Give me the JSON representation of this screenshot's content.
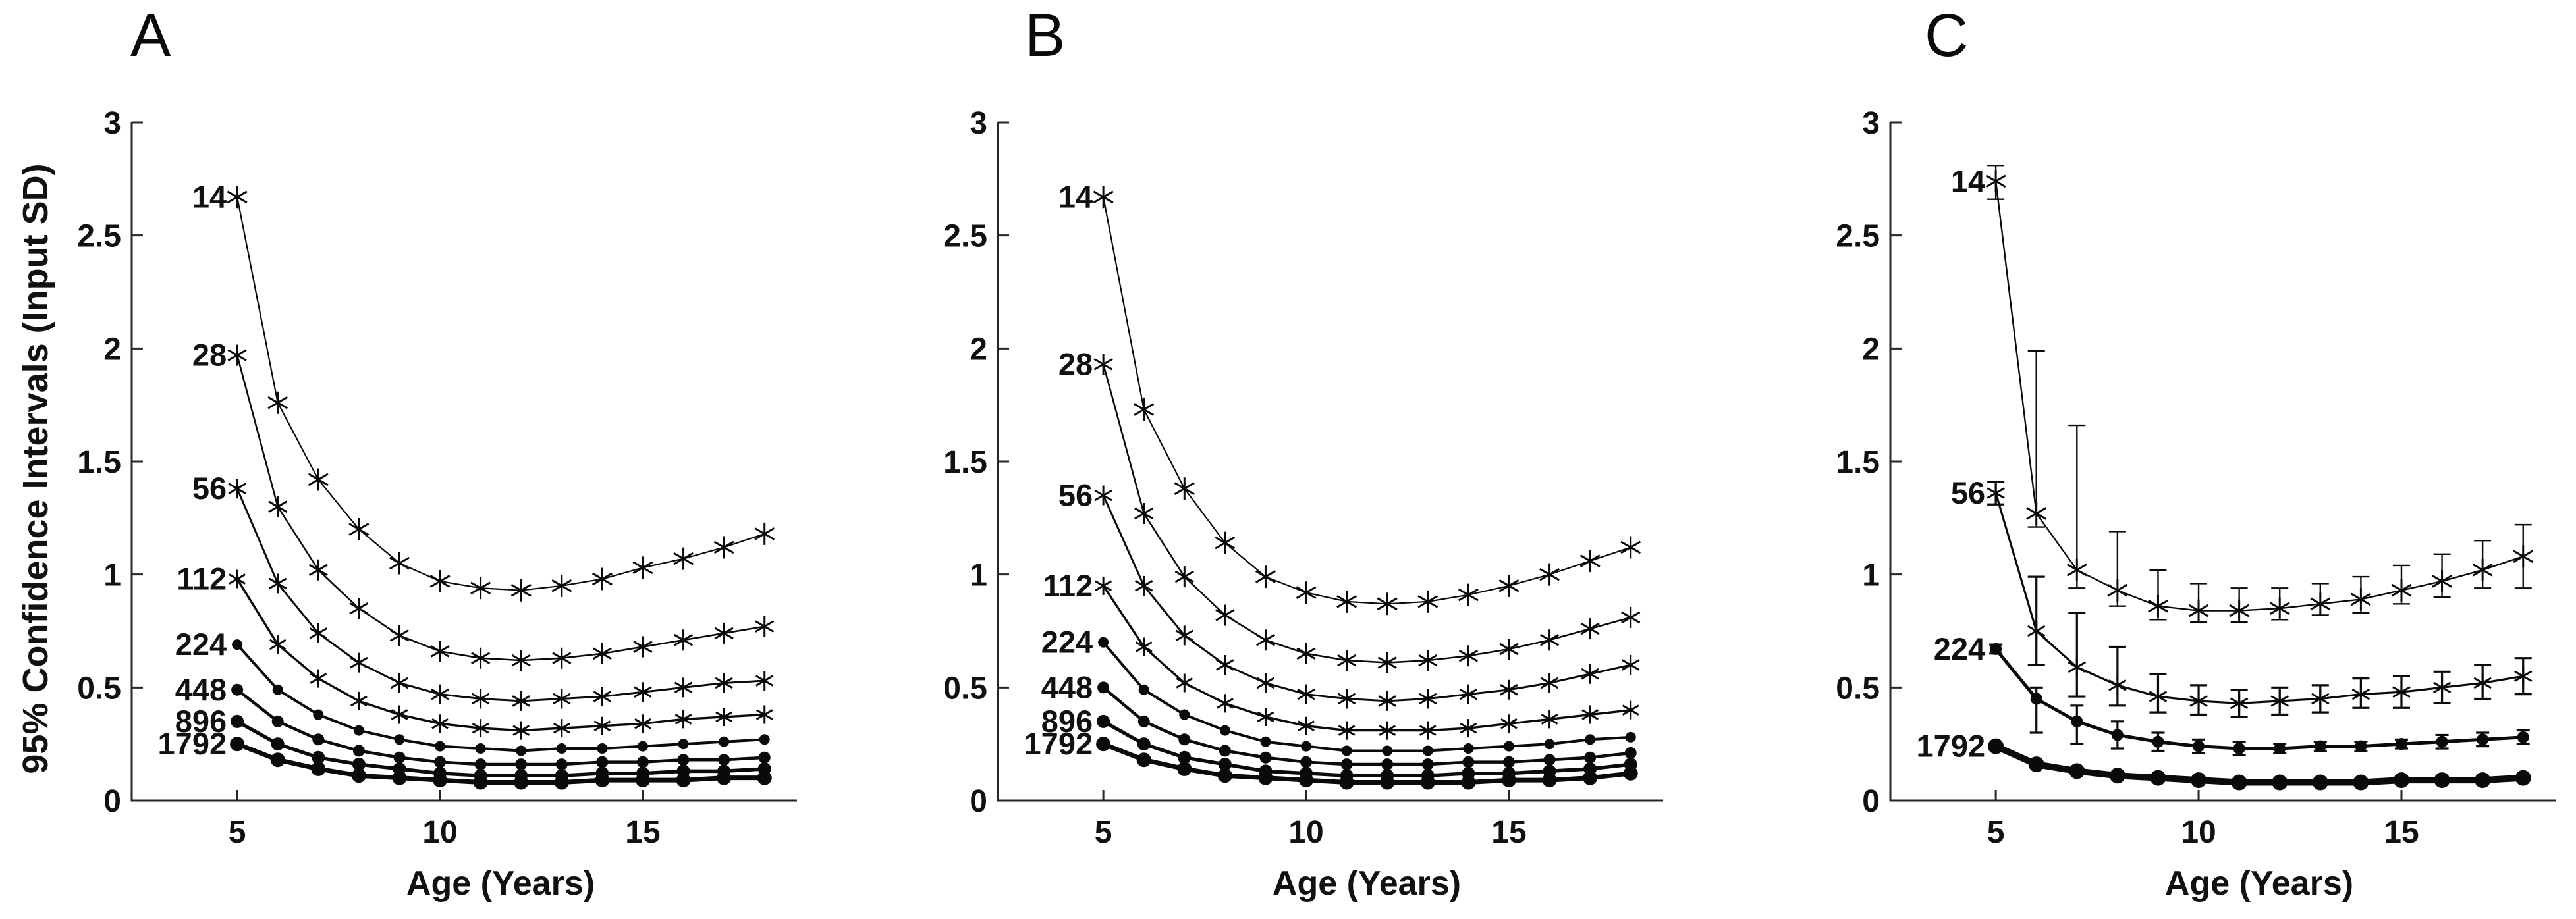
{
  "figure": {
    "y_axis_label": "95% Confidence Intervals (Input SD)",
    "x_axis_label": "Age (Years)",
    "ink_color": "#0a0a0a",
    "axis_color": "#262626",
    "background_color": "#ffffff",
    "panel_letters": [
      "A",
      "B",
      "C"
    ]
  },
  "chart_data": [
    {
      "type": "line",
      "panel_label": "A",
      "xlabel": "Age (Years)",
      "ylabel": "95% Confidence Intervals (Input SD)",
      "x": [
        5,
        6,
        7,
        8,
        9,
        10,
        11,
        12,
        13,
        14,
        15,
        16,
        17,
        18
      ],
      "xlim": [
        2.4,
        18.8
      ],
      "ylim": [
        0,
        3
      ],
      "xticks": [
        5,
        10,
        15
      ],
      "yticks": [
        0,
        0.5,
        1,
        1.5,
        2,
        2.5,
        3
      ],
      "grid": false,
      "legend_position": "inline-left-labels",
      "series": [
        {
          "name": "14",
          "marker": "star",
          "values": [
            2.67,
            1.76,
            1.42,
            1.2,
            1.05,
            0.97,
            0.94,
            0.93,
            0.95,
            0.98,
            1.03,
            1.07,
            1.12,
            1.18
          ]
        },
        {
          "name": "28",
          "marker": "star",
          "values": [
            1.97,
            1.3,
            1.02,
            0.85,
            0.73,
            0.66,
            0.63,
            0.62,
            0.63,
            0.65,
            0.68,
            0.71,
            0.74,
            0.77
          ]
        },
        {
          "name": "56",
          "marker": "star",
          "values": [
            1.38,
            0.96,
            0.74,
            0.61,
            0.52,
            0.47,
            0.45,
            0.44,
            0.45,
            0.46,
            0.48,
            0.5,
            0.52,
            0.53
          ]
        },
        {
          "name": "112",
          "marker": "star",
          "values": [
            0.98,
            0.69,
            0.54,
            0.44,
            0.38,
            0.34,
            0.32,
            0.31,
            0.32,
            0.33,
            0.34,
            0.36,
            0.37,
            0.38
          ]
        },
        {
          "name": "224",
          "marker": "dot",
          "values": [
            0.69,
            0.49,
            0.38,
            0.31,
            0.27,
            0.24,
            0.23,
            0.22,
            0.23,
            0.23,
            0.24,
            0.25,
            0.26,
            0.27
          ]
        },
        {
          "name": "448",
          "marker": "dot",
          "values": [
            0.49,
            0.35,
            0.27,
            0.22,
            0.19,
            0.17,
            0.16,
            0.16,
            0.16,
            0.17,
            0.17,
            0.18,
            0.18,
            0.19
          ]
        },
        {
          "name": "896",
          "marker": "dot",
          "values": [
            0.35,
            0.25,
            0.19,
            0.16,
            0.14,
            0.12,
            0.11,
            0.11,
            0.11,
            0.12,
            0.12,
            0.13,
            0.13,
            0.14
          ]
        },
        {
          "name": "1792",
          "marker": "dot",
          "values": [
            0.25,
            0.18,
            0.14,
            0.11,
            0.1,
            0.09,
            0.08,
            0.08,
            0.08,
            0.09,
            0.09,
            0.09,
            0.1,
            0.1
          ]
        }
      ]
    },
    {
      "type": "line",
      "panel_label": "B",
      "xlabel": "Age (Years)",
      "ylabel": "95% Confidence Intervals (Input SD)",
      "x": [
        5,
        6,
        7,
        8,
        9,
        10,
        11,
        12,
        13,
        14,
        15,
        16,
        17,
        18
      ],
      "xlim": [
        2.4,
        18.8
      ],
      "ylim": [
        0,
        3
      ],
      "xticks": [
        5,
        10,
        15
      ],
      "yticks": [
        0,
        0.5,
        1,
        1.5,
        2,
        2.5,
        3
      ],
      "grid": false,
      "legend_position": "inline-left-labels",
      "series": [
        {
          "name": "14",
          "marker": "star",
          "values": [
            2.67,
            1.73,
            1.38,
            1.14,
            0.99,
            0.92,
            0.88,
            0.87,
            0.88,
            0.91,
            0.95,
            1.0,
            1.06,
            1.12
          ]
        },
        {
          "name": "28",
          "marker": "star",
          "values": [
            1.93,
            1.27,
            0.99,
            0.82,
            0.71,
            0.65,
            0.62,
            0.61,
            0.62,
            0.64,
            0.67,
            0.71,
            0.76,
            0.81
          ]
        },
        {
          "name": "56",
          "marker": "star",
          "values": [
            1.35,
            0.95,
            0.73,
            0.6,
            0.52,
            0.47,
            0.45,
            0.44,
            0.45,
            0.47,
            0.49,
            0.52,
            0.56,
            0.6
          ]
        },
        {
          "name": "112",
          "marker": "star",
          "values": [
            0.95,
            0.68,
            0.52,
            0.43,
            0.37,
            0.33,
            0.31,
            0.31,
            0.31,
            0.32,
            0.34,
            0.36,
            0.38,
            0.4
          ]
        },
        {
          "name": "224",
          "marker": "dot",
          "values": [
            0.7,
            0.49,
            0.38,
            0.31,
            0.26,
            0.24,
            0.22,
            0.22,
            0.22,
            0.23,
            0.24,
            0.25,
            0.27,
            0.28
          ]
        },
        {
          "name": "448",
          "marker": "dot",
          "values": [
            0.5,
            0.35,
            0.27,
            0.22,
            0.19,
            0.17,
            0.16,
            0.16,
            0.16,
            0.17,
            0.17,
            0.18,
            0.19,
            0.21
          ]
        },
        {
          "name": "896",
          "marker": "dot",
          "values": [
            0.35,
            0.25,
            0.19,
            0.16,
            0.13,
            0.12,
            0.11,
            0.11,
            0.11,
            0.12,
            0.12,
            0.13,
            0.14,
            0.16
          ]
        },
        {
          "name": "1792",
          "marker": "dot",
          "values": [
            0.25,
            0.18,
            0.14,
            0.11,
            0.1,
            0.09,
            0.08,
            0.08,
            0.08,
            0.08,
            0.09,
            0.09,
            0.1,
            0.12
          ]
        }
      ]
    },
    {
      "type": "line",
      "panel_label": "C",
      "xlabel": "Age (Years)",
      "ylabel": "95% Confidence Intervals (Input SD)",
      "x": [
        5,
        6,
        7,
        8,
        9,
        10,
        11,
        12,
        13,
        14,
        15,
        16,
        17,
        18
      ],
      "xlim": [
        2.4,
        18.8
      ],
      "ylim": [
        0,
        3
      ],
      "xticks": [
        5,
        10,
        15
      ],
      "yticks": [
        0,
        0.5,
        1,
        1.5,
        2,
        2.5,
        3
      ],
      "grid": false,
      "legend_position": "inline-left-labels",
      "error_bars": true,
      "series": [
        {
          "name": "14",
          "marker": "star",
          "values": [
            2.74,
            1.27,
            1.02,
            0.93,
            0.86,
            0.84,
            0.84,
            0.85,
            0.87,
            0.89,
            0.93,
            0.97,
            1.02,
            1.08
          ],
          "err_up": [
            0.07,
            0.72,
            0.64,
            0.26,
            0.16,
            0.12,
            0.1,
            0.09,
            0.09,
            0.1,
            0.11,
            0.12,
            0.13,
            0.14
          ],
          "err_dn": [
            0.08,
            0.06,
            0.08,
            0.07,
            0.06,
            0.05,
            0.05,
            0.05,
            0.05,
            0.06,
            0.06,
            0.07,
            0.08,
            0.14
          ]
        },
        {
          "name": "56",
          "marker": "star",
          "values": [
            1.36,
            0.75,
            0.59,
            0.51,
            0.46,
            0.44,
            0.43,
            0.44,
            0.45,
            0.47,
            0.48,
            0.5,
            0.52,
            0.55
          ],
          "err_up": [
            0.05,
            0.24,
            0.24,
            0.17,
            0.1,
            0.07,
            0.06,
            0.06,
            0.06,
            0.07,
            0.07,
            0.07,
            0.08,
            0.08
          ],
          "err_dn": [
            0.05,
            0.15,
            0.13,
            0.09,
            0.07,
            0.06,
            0.06,
            0.06,
            0.06,
            0.06,
            0.07,
            0.07,
            0.07,
            0.08
          ]
        },
        {
          "name": "224",
          "marker": "dot",
          "values": [
            0.67,
            0.45,
            0.35,
            0.29,
            0.26,
            0.24,
            0.23,
            0.23,
            0.24,
            0.24,
            0.25,
            0.26,
            0.27,
            0.28
          ],
          "err_up": [
            0.02,
            0.05,
            0.07,
            0.06,
            0.04,
            0.03,
            0.03,
            0.02,
            0.02,
            0.02,
            0.02,
            0.03,
            0.03,
            0.03
          ],
          "err_dn": [
            0.02,
            0.15,
            0.1,
            0.06,
            0.04,
            0.03,
            0.03,
            0.02,
            0.02,
            0.02,
            0.02,
            0.03,
            0.03,
            0.03
          ]
        },
        {
          "name": "1792",
          "marker": "dot",
          "values": [
            0.24,
            0.16,
            0.13,
            0.11,
            0.1,
            0.09,
            0.08,
            0.08,
            0.08,
            0.08,
            0.09,
            0.09,
            0.09,
            0.1
          ],
          "err_up": [
            0.01,
            0.01,
            0.01,
            0.01,
            0.01,
            0.01,
            0.01,
            0.01,
            0.01,
            0.01,
            0.01,
            0.01,
            0.01,
            0.01
          ],
          "err_dn": [
            0.01,
            0.01,
            0.01,
            0.01,
            0.01,
            0.01,
            0.01,
            0.01,
            0.01,
            0.01,
            0.01,
            0.01,
            0.01,
            0.01
          ]
        }
      ]
    }
  ]
}
